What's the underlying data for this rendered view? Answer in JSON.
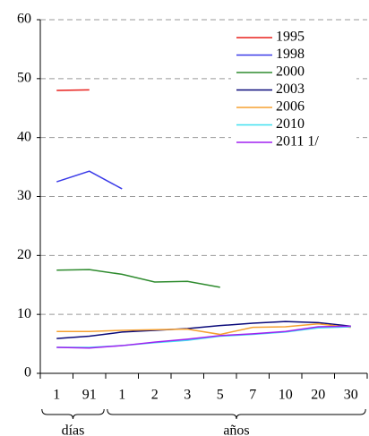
{
  "chart_data": {
    "type": "line",
    "categories": [
      "1",
      "91",
      "1",
      "2",
      "3",
      "5",
      "7",
      "10",
      "20",
      "30"
    ],
    "groups": [
      {
        "label": "días",
        "from": 0,
        "to": 1
      },
      {
        "label": "años",
        "from": 2,
        "to": 9
      }
    ],
    "series": [
      {
        "name": "1995",
        "color": "#e8201c",
        "values": [
          48,
          48.1,
          null,
          null,
          null,
          null,
          null,
          null,
          null,
          null
        ]
      },
      {
        "name": "1998",
        "color": "#3a3ae8",
        "values": [
          32.5,
          34.3,
          31.3,
          null,
          null,
          null,
          null,
          null,
          null,
          null
        ]
      },
      {
        "name": "2000",
        "color": "#2e8b2e",
        "values": [
          17.5,
          17.6,
          16.8,
          15.5,
          15.6,
          14.6,
          null,
          null,
          null,
          null
        ]
      },
      {
        "name": "2003",
        "color": "#0a0a7a",
        "values": [
          5.9,
          6.3,
          7.0,
          7.3,
          7.6,
          8.1,
          8.5,
          8.8,
          8.6,
          8.0
        ]
      },
      {
        "name": "2006",
        "color": "#f5a030",
        "values": [
          7.1,
          7.1,
          7.3,
          7.4,
          7.5,
          6.6,
          7.8,
          7.9,
          8.4,
          7.8
        ]
      },
      {
        "name": "2010",
        "color": "#40e0f0",
        "values": [
          4.4,
          4.4,
          4.7,
          5.2,
          5.6,
          6.3,
          6.6,
          7.0,
          7.7,
          7.9
        ]
      },
      {
        "name": "2011 1/",
        "color": "#a020f0",
        "values": [
          4.4,
          4.3,
          4.7,
          5.3,
          5.8,
          6.4,
          6.7,
          7.1,
          7.9,
          8.0
        ]
      }
    ],
    "ylim": [
      0,
      60
    ],
    "yticks": [
      0,
      10,
      20,
      30,
      40,
      50,
      60
    ],
    "grid": true,
    "legend": "upper right"
  }
}
